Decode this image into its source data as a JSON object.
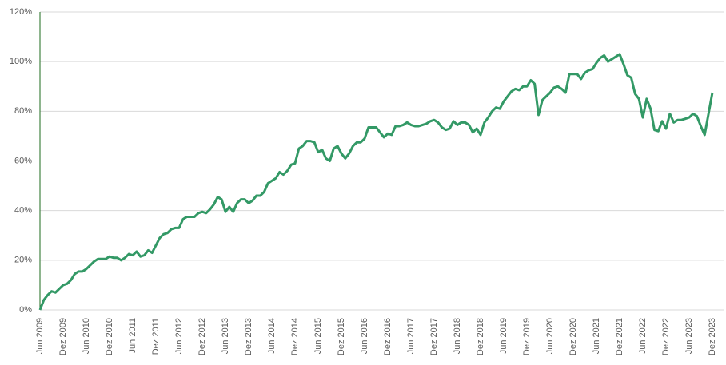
{
  "chart_data": {
    "type": "line",
    "categories": [
      "Jun 2009",
      null,
      null,
      null,
      null,
      null,
      "Dez 2009",
      null,
      null,
      null,
      null,
      null,
      "Jun 2010",
      null,
      null,
      null,
      null,
      null,
      "Dez 2010",
      null,
      null,
      null,
      null,
      null,
      "Jun 2011",
      null,
      null,
      null,
      null,
      null,
      "Dez 2011",
      null,
      null,
      null,
      null,
      null,
      "Jun 2012",
      null,
      null,
      null,
      null,
      null,
      "Dez 2012",
      null,
      null,
      null,
      null,
      null,
      "Jun 2013",
      null,
      null,
      null,
      null,
      null,
      "Dez 2013",
      null,
      null,
      null,
      null,
      null,
      "Jun 2014",
      null,
      null,
      null,
      null,
      null,
      "Dez 2014",
      null,
      null,
      null,
      null,
      null,
      "Jun 2015",
      null,
      null,
      null,
      null,
      null,
      "Dez 2015",
      null,
      null,
      null,
      null,
      null,
      "Jun 2016",
      null,
      null,
      null,
      null,
      null,
      "Dez 2016",
      null,
      null,
      null,
      null,
      null,
      "Jun 2017",
      null,
      null,
      null,
      null,
      null,
      "Dez 2017",
      null,
      null,
      null,
      null,
      null,
      "Jun 2018",
      null,
      null,
      null,
      null,
      null,
      "Dez 2018",
      null,
      null,
      null,
      null,
      null,
      "Jun 2019",
      null,
      null,
      null,
      null,
      null,
      "Dez 2019",
      null,
      null,
      null,
      null,
      null,
      "Jun 2020",
      null,
      null,
      null,
      null,
      null,
      "Dez 2020",
      null,
      null,
      null,
      null,
      null,
      "Jun 2021",
      null,
      null,
      null,
      null,
      null,
      "Dez 2021",
      null,
      null,
      null,
      null,
      null,
      "Jun 2022",
      null,
      null,
      null,
      null,
      null,
      "Dez 2022",
      null,
      null,
      null,
      null,
      null,
      "Jun 2023",
      null,
      null,
      null,
      null,
      null,
      "Dez 2023"
    ],
    "values": [
      0,
      4,
      6,
      7.5,
      7,
      8.5,
      10,
      10.5,
      12,
      14.5,
      15.5,
      15.5,
      16.5,
      18,
      19.5,
      20.5,
      20.5,
      20.5,
      21.5,
      21,
      21,
      20,
      21,
      22.5,
      22,
      23.5,
      21.5,
      22,
      24,
      23,
      26,
      29,
      30.5,
      31,
      32.5,
      33,
      33,
      36.5,
      37.5,
      37.5,
      37.5,
      39,
      39.5,
      39,
      40.5,
      42.5,
      45.5,
      44.5,
      39.5,
      41.5,
      39.5,
      43,
      44.5,
      44.5,
      43,
      44,
      46,
      46,
      47.5,
      51,
      52,
      53,
      55.5,
      54.5,
      56,
      58.5,
      59,
      65,
      66,
      68,
      68,
      67.5,
      63.5,
      64.5,
      61,
      60,
      65,
      66,
      63,
      61,
      63,
      66,
      67.5,
      67.5,
      69,
      73.5,
      73.5,
      73.5,
      71.5,
      69.5,
      71,
      70.5,
      74,
      74,
      74.5,
      75.5,
      74.5,
      74,
      74,
      74.5,
      75,
      76,
      76.5,
      75.5,
      73.5,
      72.5,
      73,
      76,
      74.5,
      75.5,
      75.5,
      74.5,
      71.5,
      73,
      70.5,
      75.5,
      77.5,
      80,
      81.5,
      81,
      84,
      86,
      88,
      89,
      88.5,
      90,
      90,
      92.5,
      91,
      78.5,
      84.5,
      86,
      87.5,
      89.5,
      90,
      89,
      87.5,
      95,
      95,
      95,
      93,
      95.5,
      96.5,
      97,
      99.5,
      101.5,
      102.5,
      100,
      101,
      102,
      103,
      99,
      94.5,
      93.5,
      87,
      85,
      77.5,
      85,
      81,
      72.5,
      72,
      76,
      73,
      79,
      75.5,
      76.5,
      76.5,
      77,
      77.5,
      79,
      78,
      74,
      70.5,
      79,
      87.5
    ],
    "color": "#339966",
    "ylim": [
      0,
      120
    ],
    "yticks": [
      {
        "value": 0,
        "label": "0%"
      },
      {
        "value": 20,
        "label": "20%"
      },
      {
        "value": 40,
        "label": "40%"
      },
      {
        "value": 60,
        "label": "60%"
      },
      {
        "value": 80,
        "label": "80%"
      },
      {
        "value": 100,
        "label": "100%"
      },
      {
        "value": 120,
        "label": "120%"
      }
    ],
    "grid": true
  }
}
